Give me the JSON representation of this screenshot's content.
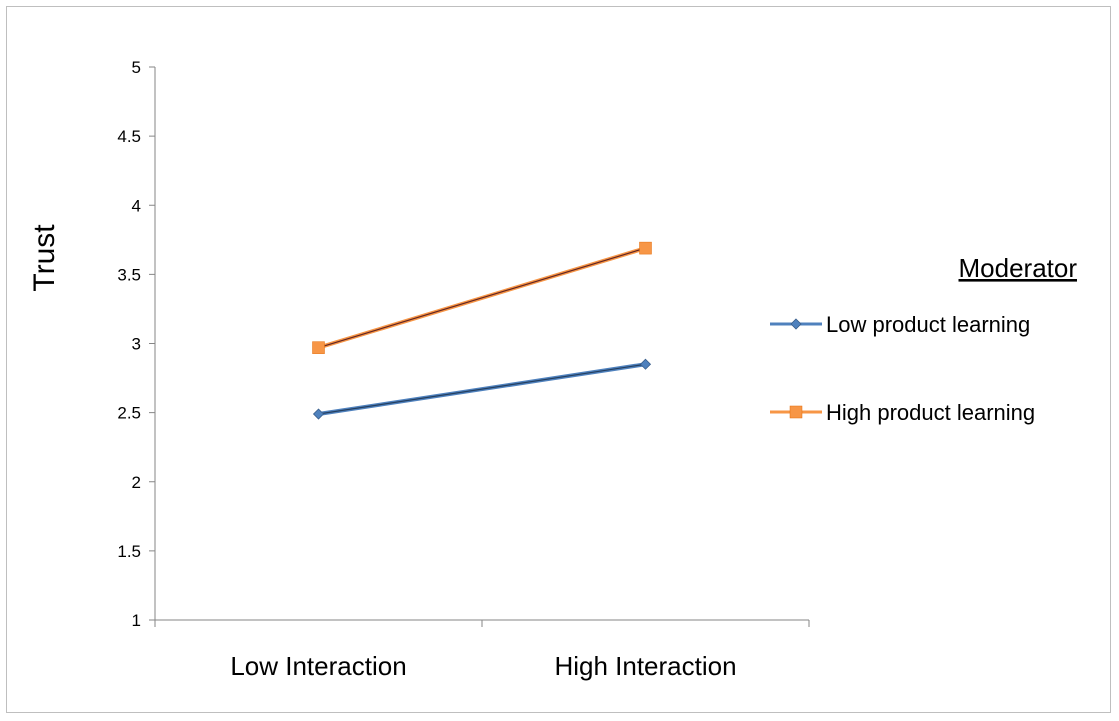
{
  "chart_data": {
    "type": "line",
    "categories": [
      "Low Interaction",
      "High Interaction"
    ],
    "series": [
      {
        "name": "Low product learning",
        "values": [
          2.49,
          2.85
        ],
        "color": "#4f81bd",
        "line_color": "#243f60",
        "marker": "diamond"
      },
      {
        "name": "High product learning",
        "values": [
          2.97,
          3.69
        ],
        "color": "#f79646",
        "line_color": "#632523",
        "marker": "square"
      }
    ],
    "ylabel": "Trust",
    "xlabel": "",
    "ylim": [
      1,
      5
    ],
    "yticks": [
      "1",
      "1.5",
      "2",
      "2.5",
      "3",
      "3.5",
      "4",
      "4.5",
      "5"
    ],
    "grid": false,
    "legend": {
      "title": "Moderator",
      "placement": "right"
    }
  }
}
